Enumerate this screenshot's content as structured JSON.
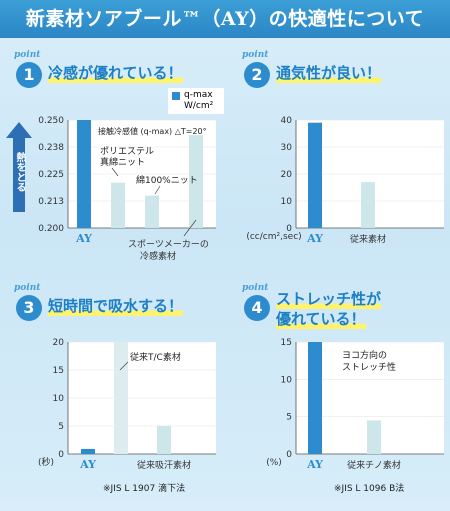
{
  "header": {
    "title": "新素材ソアブール™（AY）の快適性について"
  },
  "points": [
    {
      "word": "point",
      "num": "1",
      "title": "冷感が優れている！"
    },
    {
      "word": "point",
      "num": "2",
      "title": "通気性が良い！"
    },
    {
      "word": "point",
      "num": "3",
      "title": "短時間で吸水する！"
    },
    {
      "word": "point",
      "num": "4",
      "title_lines": [
        "ストレッチ性が",
        "優れている！"
      ]
    }
  ],
  "legend": {
    "line1": "q-max",
    "line2": "W/cm²"
  },
  "arrow_label": "熱をとる",
  "colors": {
    "primary": "#2d8ccd",
    "secondary": "#cde6ea",
    "header": "#2b86c6",
    "highlight": "#fff36b"
  },
  "notes": {
    "chart3": "※JIS L 1907 滴下法",
    "chart4": "※JIS L 1096 B法"
  },
  "chart_data": [
    {
      "type": "bar",
      "title": "接触冷感値 (q-max) △T=20°",
      "ylabel": "q-max W/cm²",
      "ylim": [
        0.2,
        0.25
      ],
      "yticks": [
        "0.250",
        "0.238",
        "0.225",
        "0.213",
        "0.200"
      ],
      "categories": [
        "AY",
        "ポリエステル 真綿ニット",
        "綿100%ニット",
        "スポーツメーカーの 冷感素材"
      ],
      "values": [
        0.25,
        0.221,
        0.215,
        0.243
      ],
      "labels": {
        "c1": [
          "ポリエステル",
          "真綿ニット"
        ],
        "c2": [
          "綿100%ニット"
        ],
        "c3": [
          "スポーツメーカーの",
          "冷感素材"
        ]
      }
    },
    {
      "type": "bar",
      "ylim": [
        0,
        40
      ],
      "yticks": [
        "40",
        "30",
        "20",
        "10",
        "0"
      ],
      "yunit": "(cc/cm²,sec)",
      "categories": [
        "AY",
        "従来素材"
      ],
      "values": [
        39,
        17
      ]
    },
    {
      "type": "bar",
      "ylim": [
        0,
        20
      ],
      "yticks": [
        "20",
        "15",
        "10",
        "5",
        "0"
      ],
      "yunit": "(秒)",
      "categories": [
        "AY",
        "従来吸汗素材"
      ],
      "values": [
        0.9,
        5
      ],
      "annotation": "従来T/C素材",
      "annotation_value": 20
    },
    {
      "type": "bar",
      "ylim": [
        0,
        15
      ],
      "yticks": [
        "15",
        "10",
        "5",
        "0"
      ],
      "yunit": "(%)",
      "categories": [
        "AY",
        "従来チノ素材"
      ],
      "values": [
        15,
        4.5
      ],
      "annotation": [
        "ヨコ方向の",
        "ストレッチ性"
      ]
    }
  ]
}
